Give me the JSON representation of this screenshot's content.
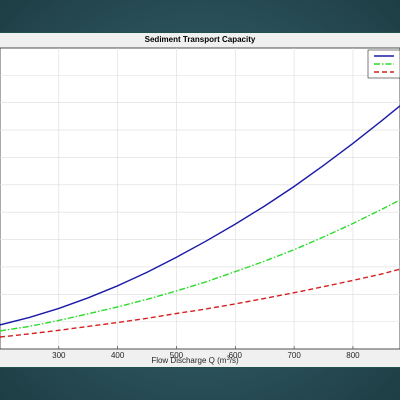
{
  "chart_data": {
    "type": "line",
    "title": "Sediment Transport Capacity",
    "xlabel_main": "Flow Discharge Q (m",
    "xlabel_sup": "3",
    "xlabel_tail": "/s)",
    "ylabel": "",
    "xlim": [
      200,
      880
    ],
    "ylim": [
      0,
      1
    ],
    "x_ticks": [
      300,
      400,
      500,
      600,
      700,
      800
    ],
    "grid": true,
    "legend_position": "top-right",
    "series": [
      {
        "color": "#1a1aa6",
        "style": "solid",
        "x": [
          200,
          250,
          300,
          350,
          400,
          450,
          500,
          550,
          600,
          650,
          700,
          750,
          800,
          850,
          880
        ],
        "values": [
          0.08,
          0.105,
          0.135,
          0.17,
          0.21,
          0.255,
          0.305,
          0.358,
          0.415,
          0.475,
          0.54,
          0.61,
          0.683,
          0.76,
          0.808
        ]
      },
      {
        "color": "#2bdc2b",
        "style": "dashdot",
        "x": [
          200,
          250,
          300,
          350,
          400,
          450,
          500,
          550,
          600,
          650,
          700,
          750,
          800,
          850,
          880
        ],
        "values": [
          0.06,
          0.075,
          0.095,
          0.117,
          0.14,
          0.165,
          0.193,
          0.223,
          0.257,
          0.292,
          0.33,
          0.372,
          0.417,
          0.465,
          0.495
        ]
      },
      {
        "color": "#d42020",
        "style": "dashed",
        "x": [
          200,
          250,
          300,
          350,
          400,
          450,
          500,
          550,
          600,
          650,
          700,
          750,
          800,
          850,
          880
        ],
        "values": [
          0.04,
          0.05,
          0.062,
          0.075,
          0.088,
          0.102,
          0.118,
          0.133,
          0.15,
          0.168,
          0.187,
          0.207,
          0.228,
          0.25,
          0.265
        ]
      }
    ]
  }
}
